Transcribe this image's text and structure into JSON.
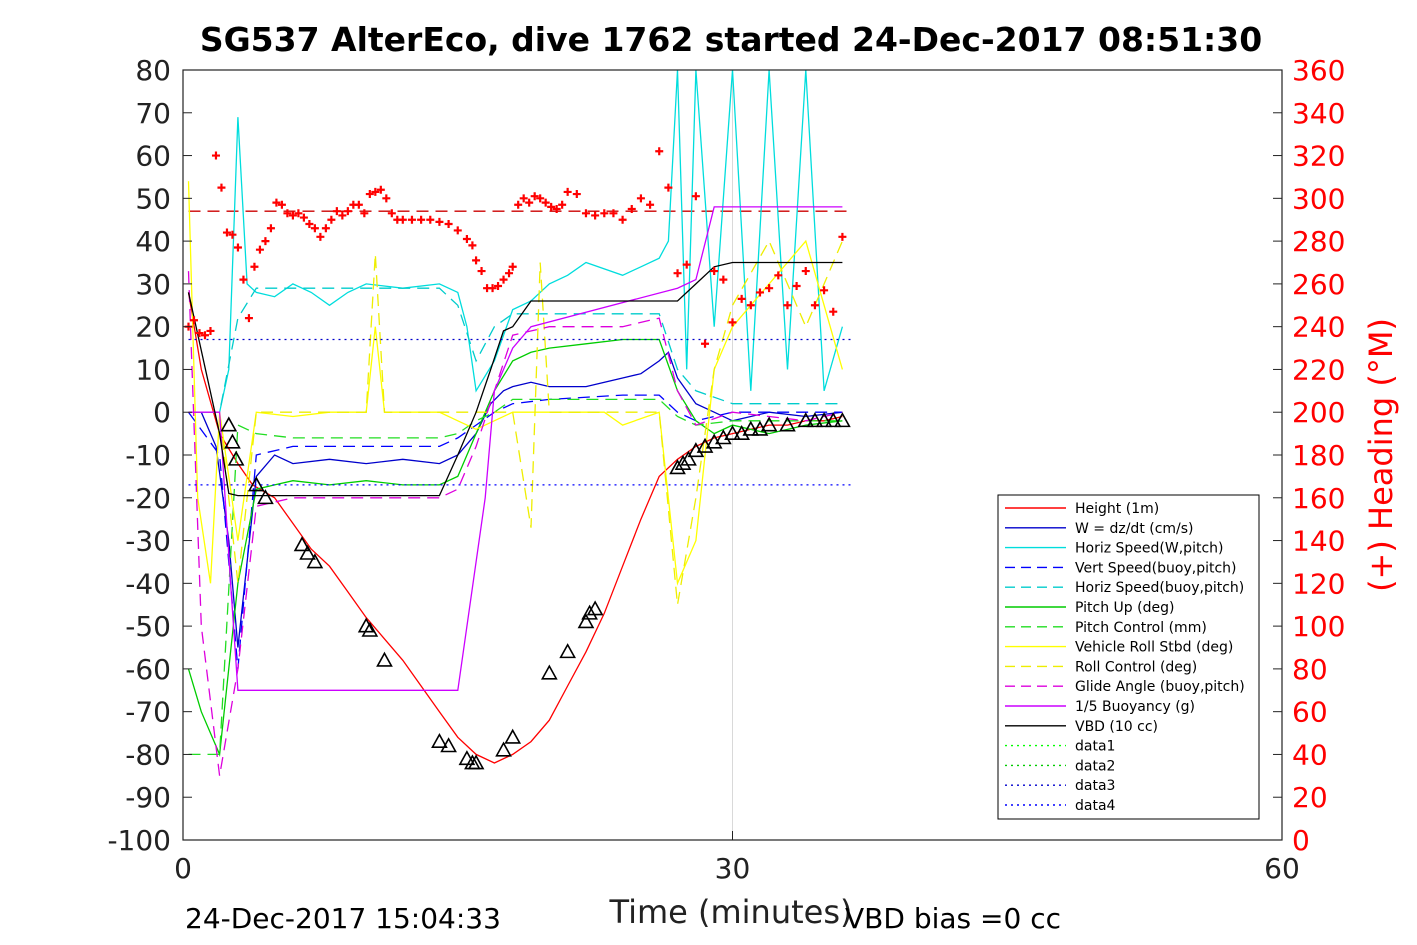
{
  "chart_data": {
    "type": "line",
    "title": "SG537 AlterEco, dive 1762 started 24-Dec-2017 08:51:30",
    "xlabel": "Time (minutes)",
    "ylabel": "",
    "y2label": "(+) Heading (°M)",
    "xlim": [
      0,
      60
    ],
    "ylim": [
      -100,
      80
    ],
    "y2lim": [
      0,
      360
    ],
    "x_ticks": [
      0,
      30,
      60
    ],
    "y_ticks": [
      80,
      70,
      60,
      50,
      40,
      30,
      20,
      10,
      0,
      -10,
      -20,
      -30,
      -40,
      -50,
      -60,
      -70,
      -80,
      -90,
      -100
    ],
    "y2_ticks": [
      360,
      340,
      320,
      300,
      280,
      260,
      240,
      220,
      200,
      180,
      160,
      140,
      120,
      100,
      80,
      60,
      40,
      20,
      0
    ],
    "grid": "x=30 only",
    "legend_position": "lower-right",
    "footer_left": "24-Dec-2017 15:04:33",
    "footer_right": "VBD bias =0 cc",
    "series": [
      {
        "name": "Height (1m)",
        "color": "#ff0000",
        "style": "solid",
        "x": [
          0.3,
          1,
          2,
          3,
          3.8,
          5,
          6,
          7,
          8,
          9,
          10,
          11,
          12,
          13,
          14,
          15,
          16,
          17,
          18,
          19,
          20,
          21,
          22,
          23,
          24,
          25,
          26,
          27,
          28,
          29,
          30,
          31,
          32,
          33,
          34,
          35,
          36
        ],
        "y": [
          28,
          10,
          -5,
          -12,
          -17,
          -20,
          -26,
          -32,
          -36,
          -42,
          -48,
          -53,
          -58,
          -64,
          -70,
          -76,
          -80,
          -82,
          -80,
          -77,
          -72,
          -64,
          -56,
          -47,
          -36,
          -25,
          -15,
          -11,
          -8,
          -6,
          -5,
          -4,
          -3,
          -3,
          -2,
          -2,
          -1
        ]
      },
      {
        "name": "W = dz/dt (cm/s)",
        "color": "#0000cc",
        "style": "solid",
        "x": [
          0.3,
          1,
          1.8,
          2.5,
          3,
          4,
          5,
          6,
          8,
          10,
          12,
          14,
          15,
          16,
          16.8,
          17.5,
          18,
          19,
          20,
          22,
          24,
          25,
          26,
          26.5,
          27,
          28,
          29,
          30,
          32,
          34,
          36
        ],
        "y": [
          0,
          0,
          -8,
          -30,
          -55,
          -15,
          -10,
          -12,
          -11,
          -12,
          -11,
          -12,
          -10,
          -5,
          2,
          5,
          6,
          7,
          6,
          6,
          8,
          9,
          12,
          14,
          8,
          2,
          0,
          -2,
          0,
          -1,
          0
        ]
      },
      {
        "name": "Horiz Speed(W,pitch)",
        "color": "#00dddd",
        "style": "solid",
        "x": [
          0.3,
          1,
          2,
          2.5,
          3,
          3.5,
          4,
          5,
          6,
          7,
          8,
          9,
          10,
          12,
          14,
          15,
          15.5,
          16,
          17,
          18,
          19,
          20,
          21,
          22,
          24,
          25,
          26,
          26.5,
          27,
          27.5,
          28,
          29,
          30,
          31,
          32,
          33,
          34,
          35,
          36
        ],
        "y": [
          0,
          0,
          0,
          10,
          69,
          30,
          28,
          27,
          30,
          28,
          25,
          28,
          30,
          29,
          30,
          28,
          20,
          5,
          12,
          24,
          26,
          30,
          32,
          35,
          32,
          34,
          36,
          40,
          80,
          10,
          80,
          20,
          80,
          5,
          80,
          10,
          80,
          5,
          20
        ]
      },
      {
        "name": "Vert Speed(buoy,pitch)",
        "color": "#0000ff",
        "style": "dashed",
        "x": [
          0.3,
          2,
          3,
          4,
          6,
          10,
          14,
          15,
          16,
          17,
          18,
          20,
          24,
          26,
          27,
          28,
          30,
          34,
          36
        ],
        "y": [
          0,
          -10,
          -60,
          -10,
          -8,
          -8,
          -8,
          -6,
          -3,
          0,
          2,
          3,
          4,
          4,
          0,
          -2,
          0,
          0,
          0
        ]
      },
      {
        "name": "Horiz Speed(buoy,pitch)",
        "color": "#00cccc",
        "style": "dashed",
        "x": [
          0.3,
          2,
          3,
          4,
          6,
          10,
          14,
          15,
          16,
          17,
          18,
          20,
          24,
          26,
          27,
          28,
          30,
          34,
          36
        ],
        "y": [
          0,
          0,
          22,
          29,
          29,
          29,
          29,
          25,
          12,
          20,
          23,
          23,
          23,
          23,
          10,
          5,
          2,
          2,
          2
        ]
      },
      {
        "name": "Pitch Up (deg)",
        "color": "#00cc00",
        "style": "solid",
        "x": [
          0.3,
          1,
          2,
          3,
          4,
          5,
          6,
          8,
          10,
          12,
          14,
          15,
          16,
          17,
          18,
          19,
          20,
          22,
          24,
          26,
          27,
          28,
          29,
          30,
          32,
          34,
          36
        ],
        "y": [
          -60,
          -70,
          -80,
          -40,
          -18,
          -17,
          -16,
          -17,
          -16,
          -17,
          -17,
          -15,
          -5,
          5,
          12,
          14,
          15,
          16,
          17,
          17,
          5,
          -2,
          -5,
          -3,
          -5,
          -3,
          -2
        ]
      },
      {
        "name": "Pitch Control (mm)",
        "color": "#22dd22",
        "style": "dashed",
        "x": [
          0.3,
          2,
          3,
          4,
          6,
          10,
          14,
          15,
          16,
          17,
          18,
          20,
          24,
          26,
          27,
          28,
          30,
          34,
          36
        ],
        "y": [
          -80,
          -80,
          -3,
          -5,
          -6,
          -6,
          -6,
          -5,
          -2,
          0,
          3,
          3,
          3,
          3,
          -1,
          -3,
          -2,
          -2,
          -2
        ]
      },
      {
        "name": "Vehicle Roll Stbd (deg)",
        "color": "#ffff00",
        "style": "solid",
        "x": [
          0.3,
          0.8,
          1.5,
          2,
          3,
          4,
          6,
          8,
          10,
          10.5,
          11,
          12,
          14,
          15,
          16,
          18,
          20,
          22,
          23,
          24,
          26,
          27,
          28,
          29,
          30,
          32,
          34,
          36
        ],
        "y": [
          54,
          -20,
          -40,
          0,
          -30,
          0,
          -1,
          0,
          0,
          20,
          0,
          0,
          0,
          -2,
          -4,
          0,
          0,
          0,
          0,
          -3,
          0,
          -40,
          -30,
          10,
          20,
          30,
          40,
          10
        ]
      },
      {
        "name": "Roll Control (deg)",
        "color": "#eeee00",
        "style": "dashed",
        "x": [
          0.3,
          2,
          3,
          4,
          6,
          8,
          10,
          10.5,
          11,
          12,
          14,
          16,
          18,
          19,
          19.5,
          20,
          22,
          24,
          26,
          27,
          28,
          29,
          30,
          32,
          34,
          36
        ],
        "y": [
          0,
          0,
          -40,
          0,
          0,
          0,
          0,
          37,
          0,
          0,
          0,
          0,
          0,
          -27,
          35,
          0,
          0,
          0,
          0,
          -45,
          -20,
          10,
          25,
          40,
          20,
          40
        ]
      },
      {
        "name": "Glide Angle (buoy,pitch)",
        "color": "#dd00dd",
        "style": "dashed",
        "x": [
          0.3,
          1,
          2,
          3,
          4,
          6,
          10,
          14,
          15,
          16,
          17,
          18,
          20,
          24,
          26,
          27,
          28,
          30,
          34,
          36
        ],
        "y": [
          33,
          -50,
          -85,
          -60,
          -22,
          -20,
          -20,
          -20,
          -18,
          -8,
          5,
          18,
          20,
          20,
          22,
          5,
          -3,
          0,
          -2,
          0
        ]
      },
      {
        "name": "1/5 Buoyancy (g)",
        "color": "#cc00ff",
        "style": "solid",
        "x": [
          0.3,
          2,
          2.6,
          3,
          15,
          16.5,
          17,
          18,
          19,
          27,
          28,
          29,
          30,
          36
        ],
        "y": [
          0,
          0,
          -40,
          -65,
          -65,
          -20,
          5,
          15,
          20,
          29,
          31,
          48,
          48,
          48
        ]
      },
      {
        "name": "VBD (10 cc)",
        "color": "#000000",
        "style": "solid",
        "x": [
          0.3,
          2,
          2.5,
          3,
          4,
          8,
          14,
          15,
          16,
          16.8,
          17.5,
          18,
          19,
          20,
          22,
          24,
          26,
          27,
          28,
          29,
          30,
          32,
          36
        ],
        "y": [
          28,
          -5,
          -19,
          -19.5,
          -19.5,
          -19.5,
          -19.5,
          -10,
          0,
          10,
          19,
          20,
          26,
          26,
          26,
          26,
          26,
          26,
          30,
          34,
          35,
          35,
          35
        ]
      },
      {
        "name": "data1",
        "color": "#00ff00",
        "style": "dotted",
        "x": [],
        "y": []
      },
      {
        "name": "data2",
        "color": "#00cc00",
        "style": "dotted",
        "x": [],
        "y": []
      },
      {
        "name": "data3",
        "color": "#0000cc",
        "style": "dotted",
        "x": [
          0.3,
          36.5
        ],
        "y": [
          17,
          17
        ]
      },
      {
        "name": "data4",
        "color": "#0000ff",
        "style": "dotted",
        "x": [
          0.3,
          36.5
        ],
        "y": [
          -17,
          -17
        ]
      }
    ],
    "unlabeled_lines": [
      {
        "color": "#cc0000",
        "style": "dashed",
        "x": [
          0.3,
          36.5
        ],
        "y": [
          47,
          47
        ]
      }
    ],
    "heading_points": {
      "marker": "plus",
      "color": "#ff0000",
      "axis": "right",
      "x": [
        0.3,
        0.6,
        0.9,
        1.2,
        1.5,
        1.8,
        2.1,
        2.4,
        2.7,
        3.0,
        3.3,
        3.6,
        3.9,
        4.2,
        4.5,
        4.8,
        5.1,
        5.4,
        5.7,
        6.0,
        6.3,
        6.6,
        6.9,
        7.2,
        7.5,
        7.8,
        8.1,
        8.4,
        8.7,
        9.0,
        9.3,
        9.6,
        9.9,
        10.2,
        10.5,
        10.8,
        11.1,
        11.4,
        11.7,
        12,
        12.5,
        13,
        13.5,
        14,
        14.5,
        15,
        15.5,
        15.8,
        16,
        16.3,
        16.6,
        16.9,
        17.2,
        17.5,
        17.8,
        18,
        18.3,
        18.6,
        18.9,
        19.2,
        19.5,
        19.8,
        20.1,
        20.4,
        20.7,
        21,
        21.5,
        22,
        22.5,
        23,
        23.5,
        24,
        24.5,
        25,
        25.5,
        26,
        26.5,
        27,
        27.5,
        28,
        28.5,
        29,
        29.5,
        30,
        30.5,
        31,
        31.5,
        32,
        32.5,
        33,
        33.5,
        34,
        34.5,
        35,
        35.5,
        36
      ],
      "y": [
        240,
        243,
        237,
        236,
        238,
        320,
        305,
        284,
        283,
        277,
        262,
        244,
        268,
        276,
        280,
        286,
        298,
        297,
        293,
        292,
        293,
        291,
        288,
        286,
        282,
        286,
        290,
        294,
        292,
        294,
        297,
        297,
        293,
        302,
        303,
        304,
        300,
        293,
        290,
        290,
        290,
        290,
        290,
        289,
        288,
        285,
        281,
        278,
        271,
        266,
        258,
        258,
        259,
        262,
        265,
        268,
        297,
        300,
        298,
        301,
        300,
        298,
        296,
        295,
        297,
        303,
        302,
        293,
        292,
        293,
        293,
        290,
        295,
        300,
        297,
        322,
        305,
        265,
        269,
        301,
        232,
        266,
        262,
        242,
        253,
        250,
        256,
        258,
        264,
        250,
        259,
        266,
        250,
        257,
        247,
        282
      ]
    },
    "depth_markers": {
      "marker": "triangle",
      "color": "#000000",
      "axis": "left",
      "x": [
        2.5,
        2.7,
        2.9,
        4,
        4.5,
        6.5,
        6.8,
        7.2,
        10,
        10.2,
        11,
        14,
        14.5,
        15.5,
        15.8,
        16,
        17.5,
        18,
        20,
        21,
        22,
        22.2,
        22.5,
        27,
        27.3,
        27.6,
        28,
        28.5,
        29,
        29.5,
        30,
        30.5,
        31,
        31.5,
        32,
        33,
        34,
        34.5,
        35,
        35.5,
        36
      ],
      "y": [
        -3,
        -7,
        -11,
        -17,
        -20,
        -31,
        -33,
        -35,
        -50,
        -51,
        -58,
        -77,
        -78,
        -81,
        -82,
        -82,
        -79,
        -76,
        -61,
        -56,
        -49,
        -47,
        -46,
        -13,
        -12,
        -11,
        -9,
        -8,
        -7,
        -6,
        -5,
        -5,
        -4,
        -4,
        -3,
        -3,
        -2,
        -2,
        -2,
        -2,
        -2
      ]
    }
  }
}
